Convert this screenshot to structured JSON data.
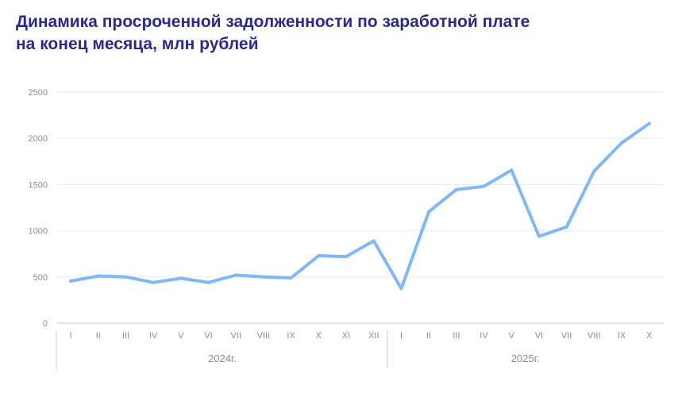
{
  "title": {
    "line1": "Динамика просроченной задолженности по заработной плате",
    "line2": "на конец месяца, млн рублей"
  },
  "chart_data": {
    "type": "line",
    "title": "Динамика просроченной задолженности по заработной плате на конец месяца, млн рублей",
    "categories": [
      "I",
      "II",
      "III",
      "IV",
      "V",
      "VI",
      "VII",
      "VIII",
      "IX",
      "X",
      "XI",
      "XII",
      "I",
      "II",
      "III",
      "IV",
      "V",
      "VI",
      "VII",
      "VIII",
      "IX",
      "X"
    ],
    "groups": [
      {
        "label": "2024г.",
        "count": 12
      },
      {
        "label": "2025г.",
        "count": 10
      }
    ],
    "series": [
      {
        "values": [
          455,
          510,
          500,
          440,
          485,
          440,
          520,
          500,
          490,
          730,
          720,
          890,
          375,
          1205,
          1445,
          1480,
          1655,
          940,
          1040,
          1645,
          1950,
          2160
        ],
        "color": "#7fb8f8"
      }
    ],
    "y_ticks": [
      0,
      500,
      1000,
      1500,
      2000,
      2500
    ],
    "ylim": [
      0,
      2500
    ],
    "grid": true,
    "legend": "none"
  }
}
